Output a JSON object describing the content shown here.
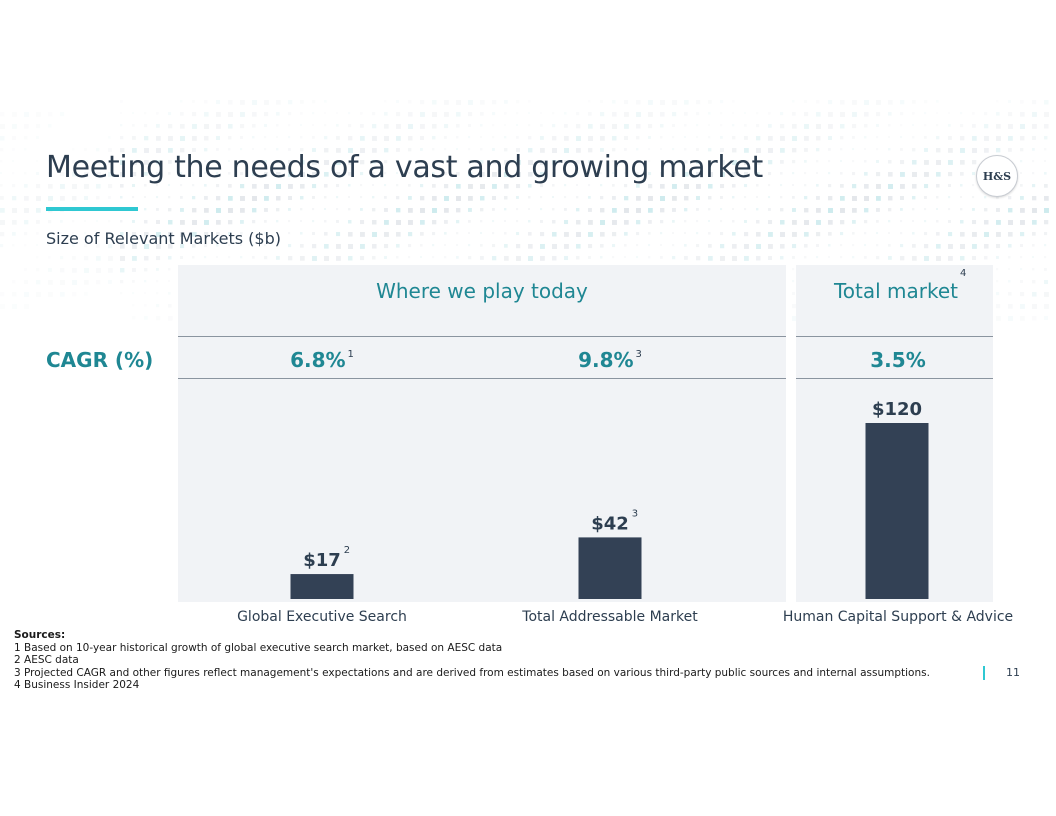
{
  "slide": {
    "title": "Meeting the needs of a vast and growing market",
    "subtitle": "Size of Relevant Markets ($b)",
    "logo_text": "H&S",
    "page_number": "11"
  },
  "colors": {
    "navy": "#2d3e50",
    "bar": "#334155",
    "teal": "#1f8793",
    "accent": "#2fc8d2",
    "panel": "#f1f3f6"
  },
  "headers": {
    "left": "Where we play today",
    "right": "Total market",
    "right_footnote": "4"
  },
  "cagr": {
    "label": "CAGR (%)",
    "items": [
      {
        "value": "6.8%",
        "footnote": "1"
      },
      {
        "value": "9.8%",
        "footnote": "3"
      },
      {
        "value": "3.5%",
        "footnote": ""
      }
    ]
  },
  "chart_data": {
    "type": "bar",
    "categories": [
      "Global Executive Search",
      "Total Addressable Market",
      "Human Capital Support & Advice"
    ],
    "values": [
      17,
      42,
      120
    ],
    "data_labels": [
      "$17",
      "$42",
      "$120"
    ],
    "label_footnotes": [
      "2",
      "3",
      ""
    ],
    "title": "Size of Relevant Markets ($b)",
    "xlabel": "",
    "ylabel": "",
    "ylim": [
      0,
      120
    ],
    "grid": false,
    "legend": "none"
  },
  "sources": {
    "heading": "Sources:",
    "lines": [
      "1 Based on 10-year historical growth of global executive search market, based on AESC data",
      "2 AESC data",
      "3 Projected CAGR and other figures reflect management's expectations and are derived from estimates based on various third-party public sources and internal assumptions.",
      "4 Business Insider 2024"
    ]
  }
}
